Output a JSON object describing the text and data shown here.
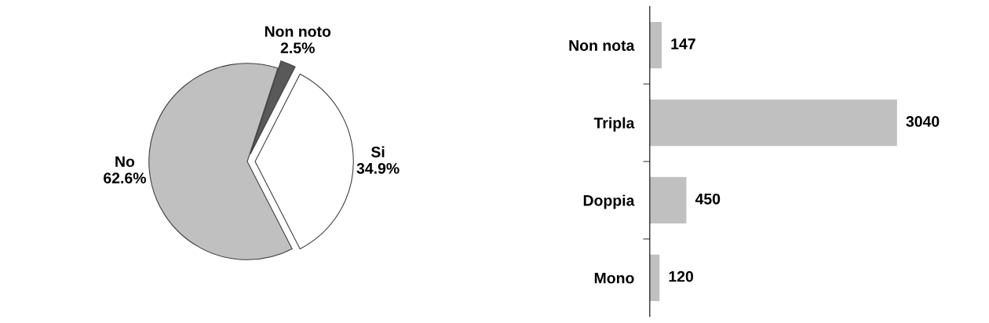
{
  "chart_data": [
    {
      "type": "pie",
      "categories": [
        "Si",
        "Non noto",
        "No"
      ],
      "values": [
        34.9,
        2.5,
        62.6
      ],
      "colors": [
        "#ffffff",
        "#595959",
        "#c0c0c0"
      ],
      "value_labels": [
        "34.9%",
        "2.5%",
        "62.6%"
      ]
    },
    {
      "type": "bar",
      "orientation": "horizontal",
      "categories": [
        "Non nota",
        "Tripla",
        "Doppia",
        "Mono"
      ],
      "values": [
        147,
        3040,
        450,
        120
      ],
      "color": "#c0c0c0",
      "data_labels": true,
      "tick_labels": "y"
    }
  ]
}
